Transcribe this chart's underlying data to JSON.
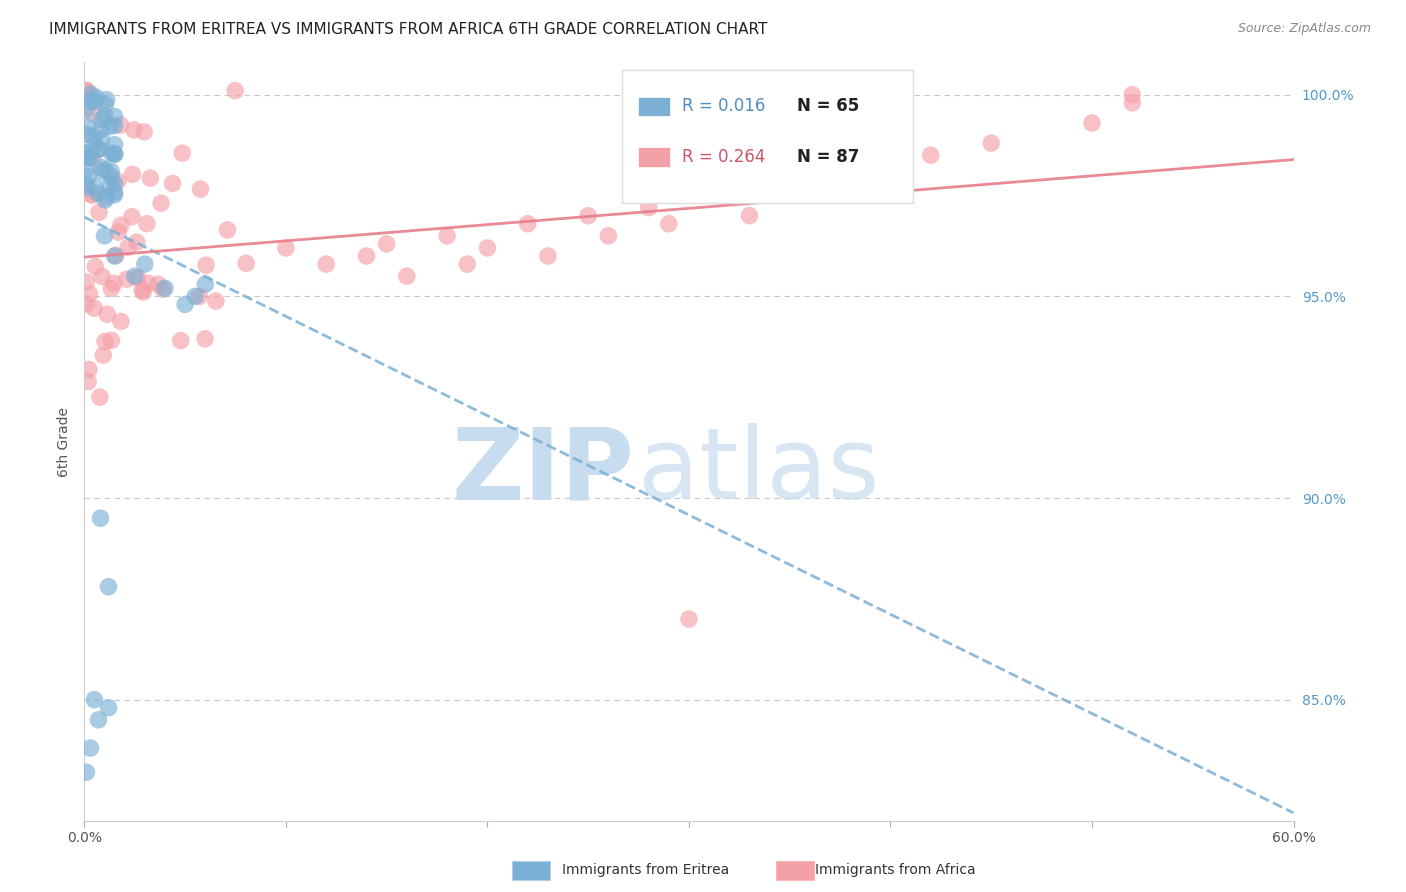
{
  "title": "IMMIGRANTS FROM ERITREA VS IMMIGRANTS FROM AFRICA 6TH GRADE CORRELATION CHART",
  "source": "Source: ZipAtlas.com",
  "ylabel": "6th Grade",
  "xlim": [
    0.0,
    0.6
  ],
  "ylim": [
    0.82,
    1.008
  ],
  "yticks": [
    0.85,
    0.9,
    0.95,
    1.0
  ],
  "yticklabels": [
    "85.0%",
    "90.0%",
    "95.0%",
    "100.0%"
  ],
  "xtick_positions": [
    0.0,
    0.1,
    0.2,
    0.3,
    0.4,
    0.5,
    0.6
  ],
  "xticklabels": [
    "0.0%",
    "",
    "",
    "",
    "",
    "",
    "60.0%"
  ],
  "legend_r_blue": "R = 0.016",
  "legend_n_blue": "N = 65",
  "legend_r_pink": "R = 0.264",
  "legend_n_pink": "N = 87",
  "legend_bottom_blue": "Immigrants from Eritrea",
  "legend_bottom_pink": "Immigrants from Africa",
  "color_blue": "#7BAFD4",
  "color_pink": "#F4A0A8",
  "color_blue_line": "#7BAFD4",
  "color_pink_line": "#E87D8A",
  "color_blue_text": "#4C8DC4",
  "color_pink_text": "#CC5566",
  "color_right_axis": "#5599CC",
  "background_color": "#FFFFFF",
  "watermark_zip_color": "#C8DCF0",
  "watermark_atlas_color": "#C8DCF0",
  "title_fontsize": 11,
  "source_fontsize": 9,
  "tick_fontsize": 10,
  "legend_fontsize": 12,
  "ylabel_fontsize": 10
}
